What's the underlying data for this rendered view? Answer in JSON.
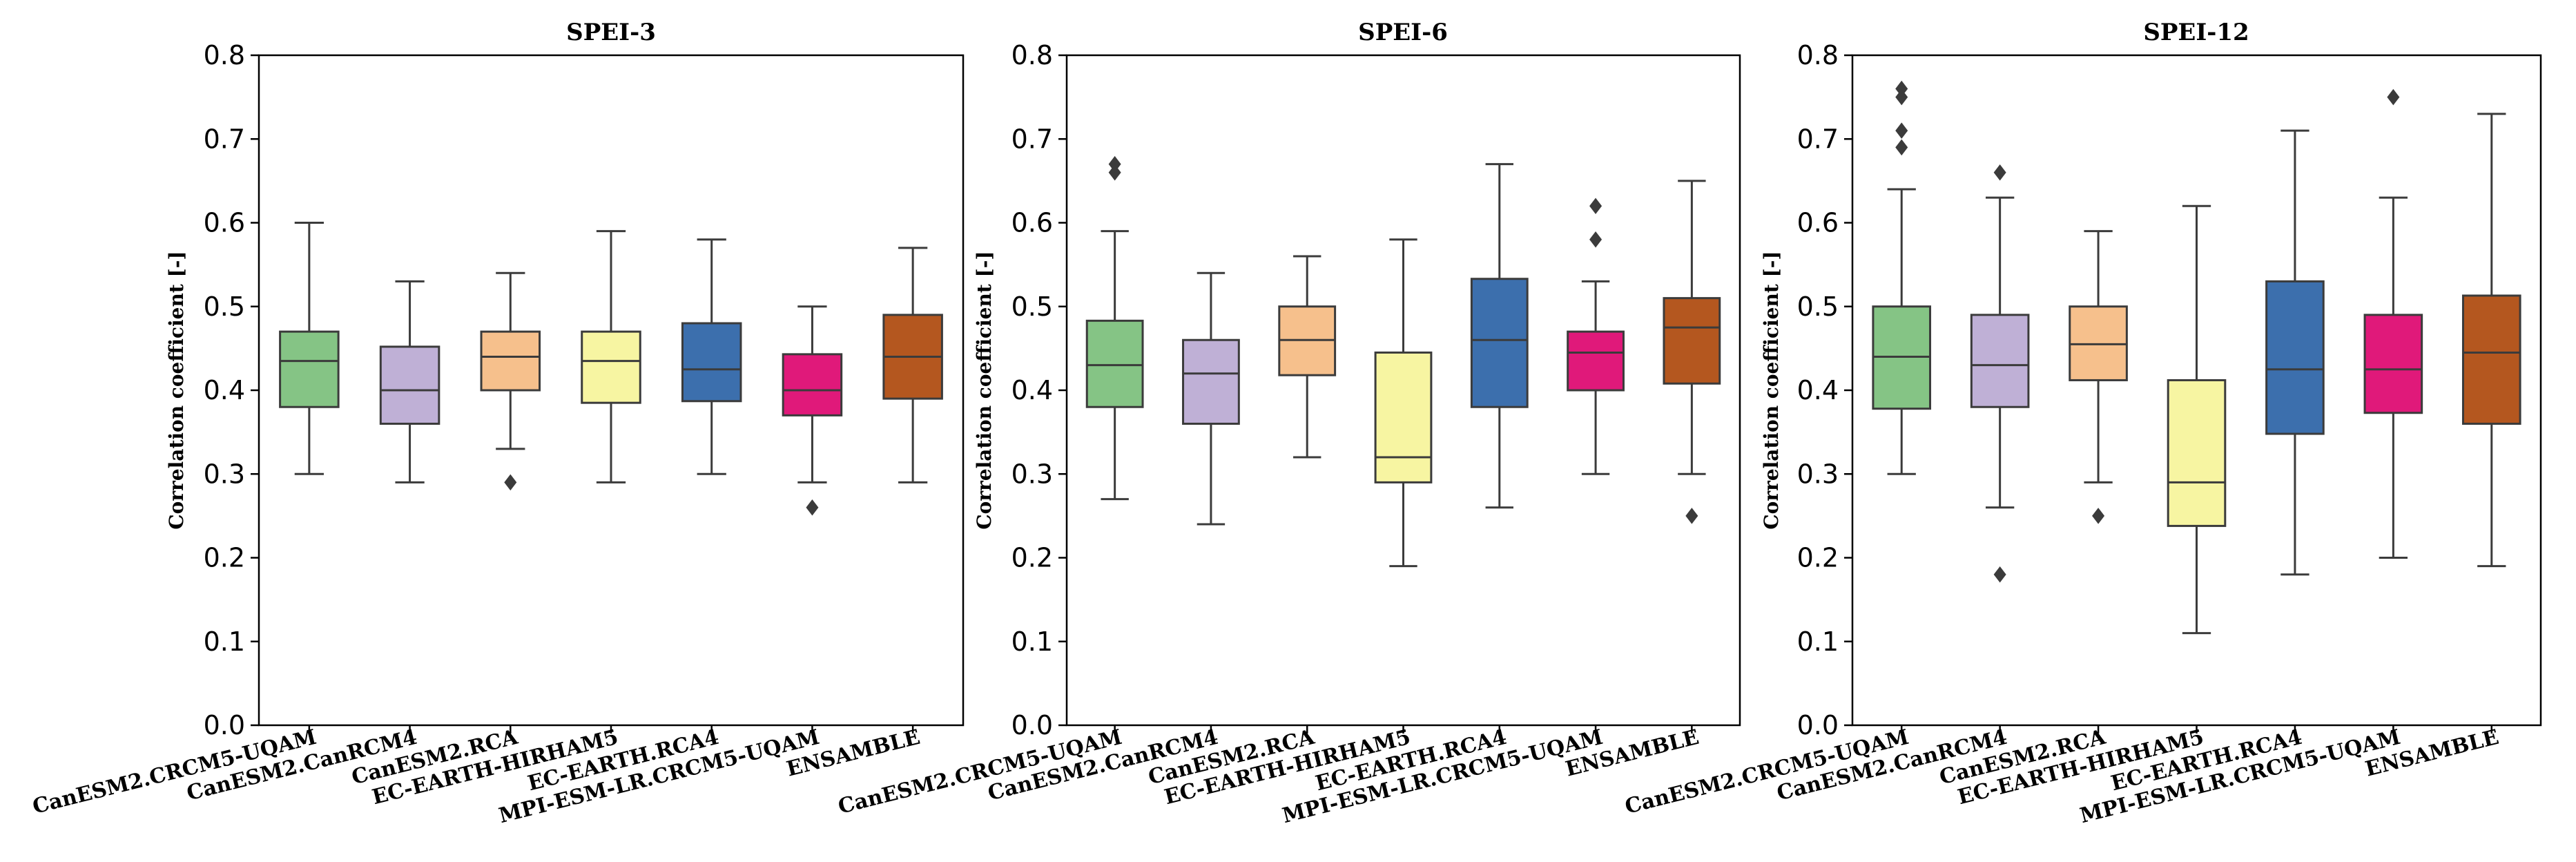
{
  "chart_data": [
    {
      "type": "box",
      "title": "SPEI-3",
      "ylabel": "Correlation coefficient [-]",
      "ylim": [
        0.0,
        0.8
      ],
      "yticks": [
        "0.0",
        "0.1",
        "0.2",
        "0.3",
        "0.4",
        "0.5",
        "0.6",
        "0.7",
        "0.8"
      ],
      "categories": [
        "CanESM2.CRCM5-UQAM",
        "CanESM2.CanRCM4",
        "CanESM2.RCA",
        "EC-EARTH-HIRHAM5",
        "EC-EARTH.RCA4",
        "MPI-ESM-LR.CRCM5-UQAM",
        "ENSAMBLE"
      ],
      "boxes": [
        {
          "min": 0.3,
          "q1": 0.38,
          "median": 0.435,
          "q3": 0.47,
          "max": 0.6,
          "outliers": []
        },
        {
          "min": 0.29,
          "q1": 0.36,
          "median": 0.4,
          "q3": 0.452,
          "max": 0.53,
          "outliers": []
        },
        {
          "min": 0.33,
          "q1": 0.4,
          "median": 0.44,
          "q3": 0.47,
          "max": 0.54,
          "outliers": [
            0.29
          ]
        },
        {
          "min": 0.29,
          "q1": 0.385,
          "median": 0.435,
          "q3": 0.47,
          "max": 0.59,
          "outliers": []
        },
        {
          "min": 0.3,
          "q1": 0.387,
          "median": 0.425,
          "q3": 0.48,
          "max": 0.58,
          "outliers": []
        },
        {
          "min": 0.29,
          "q1": 0.37,
          "median": 0.4,
          "q3": 0.443,
          "max": 0.5,
          "outliers": [
            0.26
          ]
        },
        {
          "min": 0.29,
          "q1": 0.39,
          "median": 0.44,
          "q3": 0.49,
          "max": 0.57,
          "outliers": []
        }
      ]
    },
    {
      "type": "box",
      "title": "SPEI-6",
      "ylabel": "Correlation coefficient [-]",
      "ylim": [
        0.0,
        0.8
      ],
      "yticks": [
        "0.0",
        "0.1",
        "0.2",
        "0.3",
        "0.4",
        "0.5",
        "0.6",
        "0.7",
        "0.8"
      ],
      "categories": [
        "CanESM2.CRCM5-UQAM",
        "CanESM2.CanRCM4",
        "CanESM2.RCA",
        "EC-EARTH-HIRHAM5",
        "EC-EARTH.RCA4",
        "MPI-ESM-LR.CRCM5-UQAM",
        "ENSAMBLE"
      ],
      "boxes": [
        {
          "min": 0.27,
          "q1": 0.38,
          "median": 0.43,
          "q3": 0.483,
          "max": 0.59,
          "outliers": [
            0.66,
            0.67
          ]
        },
        {
          "min": 0.24,
          "q1": 0.36,
          "median": 0.42,
          "q3": 0.46,
          "max": 0.54,
          "outliers": []
        },
        {
          "min": 0.32,
          "q1": 0.418,
          "median": 0.46,
          "q3": 0.5,
          "max": 0.56,
          "outliers": []
        },
        {
          "min": 0.19,
          "q1": 0.29,
          "median": 0.32,
          "q3": 0.445,
          "max": 0.58,
          "outliers": []
        },
        {
          "min": 0.26,
          "q1": 0.38,
          "median": 0.46,
          "q3": 0.533,
          "max": 0.67,
          "outliers": []
        },
        {
          "min": 0.3,
          "q1": 0.4,
          "median": 0.445,
          "q3": 0.47,
          "max": 0.53,
          "outliers": [
            0.58,
            0.62
          ]
        },
        {
          "min": 0.3,
          "q1": 0.408,
          "median": 0.475,
          "q3": 0.51,
          "max": 0.65,
          "outliers": [
            0.25
          ]
        }
      ]
    },
    {
      "type": "box",
      "title": "SPEI-12",
      "ylabel": "Correlation coefficient [-]",
      "ylim": [
        0.0,
        0.8
      ],
      "yticks": [
        "0.0",
        "0.1",
        "0.2",
        "0.3",
        "0.4",
        "0.5",
        "0.6",
        "0.7",
        "0.8"
      ],
      "categories": [
        "CanESM2.CRCM5-UQAM",
        "CanESM2.CanRCM4",
        "CanESM2.RCA",
        "EC-EARTH-HIRHAM5",
        "EC-EARTH.RCA4",
        "MPI-ESM-LR.CRCM5-UQAM",
        "ENSAMBLE"
      ],
      "boxes": [
        {
          "min": 0.3,
          "q1": 0.378,
          "median": 0.44,
          "q3": 0.5,
          "max": 0.64,
          "outliers": [
            0.69,
            0.71,
            0.75,
            0.76
          ]
        },
        {
          "min": 0.26,
          "q1": 0.38,
          "median": 0.43,
          "q3": 0.49,
          "max": 0.63,
          "outliers": [
            0.18,
            0.66
          ]
        },
        {
          "min": 0.29,
          "q1": 0.412,
          "median": 0.455,
          "q3": 0.5,
          "max": 0.59,
          "outliers": [
            0.25
          ]
        },
        {
          "min": 0.11,
          "q1": 0.238,
          "median": 0.29,
          "q3": 0.412,
          "max": 0.62,
          "outliers": []
        },
        {
          "min": 0.18,
          "q1": 0.348,
          "median": 0.425,
          "q3": 0.53,
          "max": 0.71,
          "outliers": []
        },
        {
          "min": 0.2,
          "q1": 0.373,
          "median": 0.425,
          "q3": 0.49,
          "max": 0.63,
          "outliers": [
            0.75
          ]
        },
        {
          "min": 0.19,
          "q1": 0.36,
          "median": 0.445,
          "q3": 0.513,
          "max": 0.73,
          "outliers": []
        }
      ]
    }
  ],
  "colors": {
    "box_fills": [
      "#85c485",
      "#bfb0d6",
      "#f6c08c",
      "#f7f5a2",
      "#3c6fad",
      "#e0197a",
      "#b4571f"
    ],
    "line": "#3b3b3b",
    "axis": "#000000"
  }
}
